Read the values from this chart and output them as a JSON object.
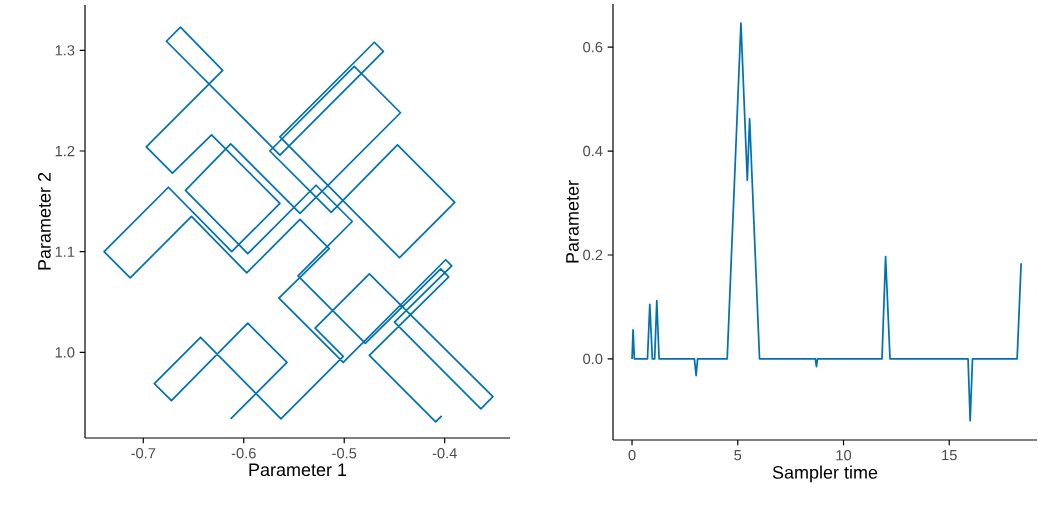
{
  "chart_data": [
    {
      "type": "line",
      "xlabel": "Parameter 1",
      "ylabel": "Parameter 2",
      "xlim": [
        -0.758,
        -0.335
      ],
      "ylim": [
        0.915,
        1.345
      ],
      "xticks": [
        -0.7,
        -0.6,
        -0.5,
        -0.4
      ],
      "yticks": [
        {
          "value": 1.0,
          "label": "1.0"
        },
        1.1,
        1.2,
        1.3
      ],
      "grid": false,
      "marker": "none",
      "line_style": "solid",
      "series": [
        {
          "color": "#0072b2",
          "x": [
            -0.613,
            -0.557,
            -0.596,
            -0.672,
            -0.689,
            -0.643,
            -0.563,
            -0.501,
            -0.529,
            -0.475,
            -0.352,
            -0.364,
            -0.45,
            -0.393,
            -0.399,
            -0.501,
            -0.565,
            -0.515,
            -0.544,
            -0.597,
            -0.652,
            -0.713,
            -0.739,
            -0.675,
            -0.612,
            -0.564,
            -0.632,
            -0.671,
            -0.697,
            -0.621,
            -0.663,
            -0.677,
            -0.564,
            -0.461,
            -0.47,
            -0.564,
            -0.445,
            -0.39,
            -0.447,
            -0.513,
            -0.574,
            -0.49,
            -0.444,
            -0.544,
            -0.613,
            -0.658,
            -0.596,
            -0.528,
            -0.492,
            -0.546,
            -0.479,
            -0.404,
            -0.396,
            -0.475,
            -0.409,
            -0.403
          ],
          "values": [
            0.934,
            0.99,
            1.029,
            0.952,
            0.969,
            1.015,
            0.934,
            0.996,
            1.024,
            1.078,
            0.956,
            0.944,
            1.03,
            1.086,
            1.092,
            0.99,
            1.054,
            1.103,
            1.132,
            1.079,
            1.135,
            1.074,
            1.1,
            1.164,
            1.1,
            1.148,
            1.216,
            1.178,
            1.204,
            1.28,
            1.323,
            1.309,
            1.196,
            1.299,
            1.308,
            1.214,
            1.094,
            1.149,
            1.206,
            1.139,
            1.2,
            1.284,
            1.238,
            1.138,
            1.207,
            1.161,
            1.098,
            1.166,
            1.13,
            1.076,
            1.009,
            1.083,
            1.075,
            0.997,
            0.931,
            0.937
          ]
        }
      ]
    },
    {
      "type": "line",
      "xlabel": "Sampler time",
      "ylabel": "Parameter",
      "xlim": [
        -0.9,
        19.15
      ],
      "ylim": [
        -0.156,
        0.683
      ],
      "xticks": [
        0,
        5,
        10,
        15
      ],
      "yticks": [
        {
          "value": 0.0,
          "label": "0.0"
        },
        0.2,
        0.4,
        0.6
      ],
      "grid": false,
      "marker": "none",
      "line_style": "solid",
      "series": [
        {
          "color": "#0072b2",
          "x": [
            0,
            0.05,
            0.11,
            0.73,
            0.84,
            0.96,
            1.07,
            1.17,
            1.28,
            2.95,
            3.03,
            3.1,
            4.5,
            5.15,
            5.45,
            5.56,
            6.03,
            8.67,
            8.72,
            8.77,
            11.82,
            11.99,
            12.2,
            15.89,
            15.99,
            16.1,
            18.21,
            18.4
          ],
          "values": [
            0,
            0.056,
            0,
            0,
            0.105,
            0,
            0,
            0.112,
            0,
            0,
            -0.032,
            0,
            0,
            0.646,
            0.344,
            0.462,
            0,
            0,
            -0.015,
            0,
            0,
            0.197,
            0,
            0,
            -0.119,
            0,
            0,
            0.184
          ]
        }
      ]
    }
  ]
}
